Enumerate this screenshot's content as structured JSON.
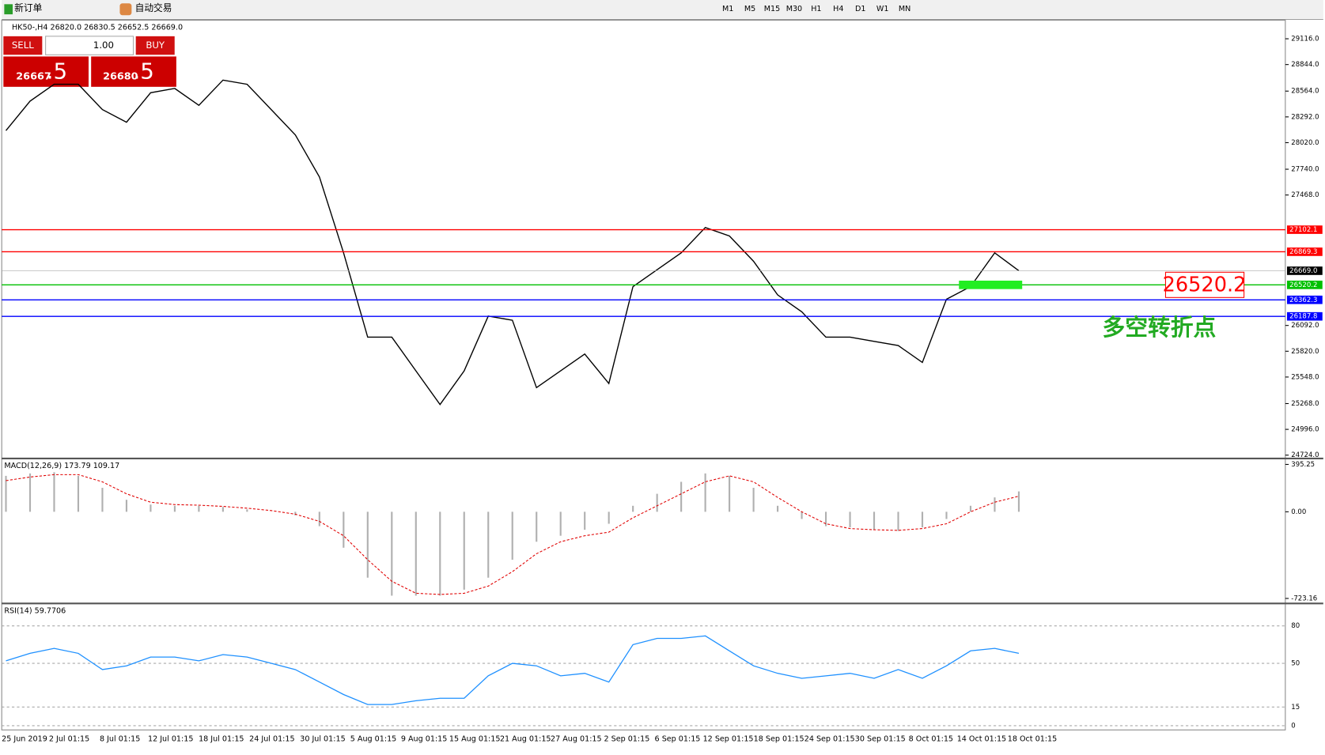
{
  "toolbar": {
    "new_order": "新订单",
    "auto_trade": "自动交易",
    "timeframes": [
      "M1",
      "M5",
      "M15",
      "M30",
      "H1",
      "H4",
      "D1",
      "W1",
      "MN"
    ]
  },
  "price_chart": {
    "header": "HK50-,H4  26820.0 26830.5 26652.5 26669.0",
    "trade_panel": {
      "sell": "SELL",
      "lots": "1.00",
      "buy": "BUY",
      "bid_big": "26667",
      "bid_small": ".5",
      "ask_big": "26680",
      "ask_small": ".5"
    },
    "ylim": [
      24724,
      29116
    ],
    "yticks": [
      {
        "value": 29116,
        "label": "29116.0"
      },
      {
        "value": 28844,
        "label": "28844.0"
      },
      {
        "value": 28564,
        "label": "28564.0"
      },
      {
        "value": 28292,
        "label": "28292.0"
      },
      {
        "value": 28020,
        "label": "28020.0"
      },
      {
        "value": 27740,
        "label": "27740.0"
      },
      {
        "value": 27468,
        "label": "27468.0"
      },
      {
        "value": 26092,
        "label": "26092.0"
      },
      {
        "value": 25820,
        "label": "25820.0"
      },
      {
        "value": 25548,
        "label": "25548.0"
      },
      {
        "value": 25268,
        "label": "25268.0"
      },
      {
        "value": 24996,
        "label": "24996.0"
      },
      {
        "value": 24724,
        "label": "24724.0"
      }
    ],
    "levels": [
      {
        "value": 27102.1,
        "color": "#ff0000"
      },
      {
        "value": 26869.3,
        "color": "#ff0000"
      },
      {
        "value": 26520.2,
        "color": "#00c000"
      },
      {
        "value": 26362.3,
        "color": "#0000ff"
      },
      {
        "value": 26187.8,
        "color": "#0000ff"
      }
    ],
    "current": {
      "value": 26669,
      "label": "26669.0"
    },
    "close": [
      28147,
      28458,
      28636,
      28636,
      28369,
      28236,
      28547,
      28592,
      28414,
      28680,
      28636,
      28369,
      28102,
      27658,
      26858,
      25969,
      25969,
      25613,
      25258,
      25613,
      26191,
      26147,
      25436,
      25613,
      25791,
      25480,
      26502,
      26680,
      26858,
      27125,
      27036,
      26769,
      26414,
      26236,
      25969,
      25969,
      25924,
      25880,
      25702,
      26369,
      26502,
      26858,
      26669
    ],
    "color": "#000000",
    "annotation": {
      "value": 26520.2,
      "label": "26520.2",
      "text": "多空转折点"
    },
    "dates": [
      "25 Jun 2019",
      "2 Jul 01:15",
      "8 Jul 01:15",
      "12 Jul 01:15",
      "18 Jul 01:15",
      "24 Jul 01:15",
      "30 Jul 01:15",
      "5 Aug 01:15",
      "9 Aug 01:15",
      "15 Aug 01:15",
      "21 Aug 01:15",
      "27 Aug 01:15",
      "2 Sep 01:15",
      "6 Sep 01:15",
      "12 Sep 01:15",
      "18 Sep 01:15",
      "24 Sep 01:15",
      "30 Sep 01:15",
      "8 Oct 01:15",
      "14 Oct 01:15",
      "18 Oct 01:15"
    ]
  },
  "macd": {
    "label": "MACD(12,26,9) 173.79 109.17",
    "ylim": [
      -723.16,
      395.25
    ],
    "yticks": [
      395.25,
      {
        "value": 0,
        "label": "0.00"
      },
      -723.16
    ],
    "histogram": [
      300,
      320,
      330,
      300,
      200,
      100,
      60,
      50,
      50,
      40,
      20,
      0,
      -30,
      -120,
      -300,
      -550,
      -700,
      -700,
      -700,
      -650,
      -550,
      -400,
      -250,
      -200,
      -150,
      -100,
      50,
      150,
      250,
      320,
      300,
      200,
      50,
      -60,
      -120,
      -130,
      -150,
      -160,
      -130,
      -60,
      50,
      120,
      170
    ],
    "signal": [
      260,
      290,
      310,
      310,
      250,
      150,
      80,
      60,
      55,
      45,
      30,
      10,
      -20,
      -80,
      -200,
      -400,
      -580,
      -680,
      -690,
      -680,
      -620,
      -500,
      -350,
      -250,
      -200,
      -170,
      -50,
      50,
      150,
      250,
      300,
      250,
      120,
      0,
      -100,
      -140,
      -150,
      -155,
      -140,
      -100,
      0,
      80,
      130
    ],
    "hist_color": "#b0b0b0",
    "signal_color": "#e00000"
  },
  "rsi": {
    "label": "RSI(14) 59.7706",
    "ylim": [
      0,
      100
    ],
    "yticks": [
      80,
      50,
      15,
      0
    ],
    "values": [
      52,
      58,
      62,
      58,
      45,
      48,
      55,
      55,
      52,
      57,
      55,
      50,
      45,
      35,
      25,
      17,
      17,
      20,
      22,
      22,
      40,
      50,
      48,
      40,
      42,
      35,
      65,
      70,
      70,
      72,
      60,
      48,
      42,
      38,
      40,
      42,
      38,
      45,
      38,
      48,
      60,
      62,
      58
    ],
    "color": "#1e90ff"
  }
}
